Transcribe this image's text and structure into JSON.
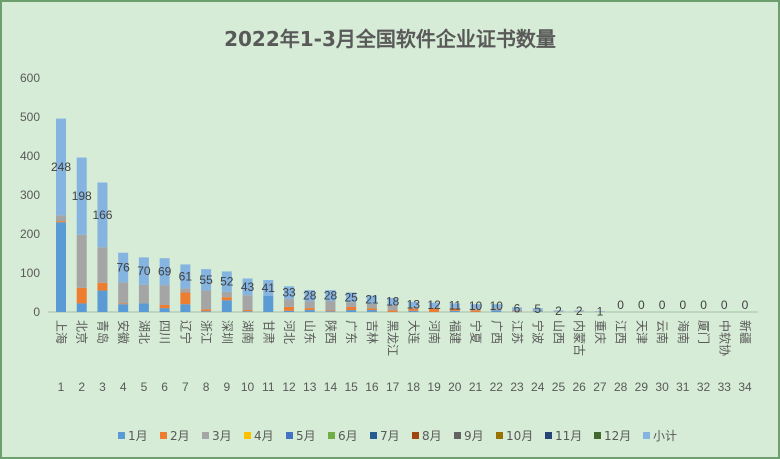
{
  "chart_data": {
    "type": "bar",
    "stacked": true,
    "title": "2022年1-3月全国软件企业证书数量",
    "xlabel": "",
    "ylabel": "",
    "categories": [
      "上海",
      "北京",
      "青岛",
      "安徽",
      "湖北",
      "四川",
      "辽宁",
      "浙江",
      "深圳",
      "湖南",
      "甘肃",
      "河北",
      "山东",
      "陕西",
      "广东",
      "吉林",
      "黑龙江",
      "大连",
      "河南",
      "福建",
      "宁夏",
      "广西",
      "江苏",
      "宁波",
      "山西",
      "内蒙古",
      "重庆",
      "江西",
      "天津",
      "云南",
      "海南",
      "厦门",
      "中软协",
      "新疆"
    ],
    "category_index": [
      "1",
      "2",
      "3",
      "4",
      "5",
      "6",
      "7",
      "8",
      "9",
      "10",
      "11",
      "12",
      "13",
      "14",
      "15",
      "16",
      "17",
      "18",
      "19",
      "20",
      "21",
      "22",
      "23",
      "24",
      "25",
      "26",
      "27",
      "28",
      "29",
      "30",
      "31",
      "32",
      "33",
      "34"
    ],
    "ylim": [
      0,
      600
    ],
    "yticks": [
      0,
      100,
      200,
      300,
      400,
      500,
      600
    ],
    "grid": false,
    "legend": "bottom",
    "data_labels_series": "小计",
    "series": [
      {
        "name": "1月",
        "color": "#5B9BD5",
        "values": [
          230,
          22,
          55,
          20,
          22,
          10,
          20,
          2,
          30,
          2,
          41,
          3,
          5,
          2,
          5,
          5,
          0,
          3,
          0,
          3,
          0,
          4,
          0,
          2,
          0,
          0,
          0,
          0,
          0,
          0,
          0,
          0,
          0,
          0
        ]
      },
      {
        "name": "2月",
        "color": "#ED7D31",
        "values": [
          3,
          40,
          20,
          2,
          0,
          8,
          30,
          5,
          8,
          3,
          0,
          10,
          5,
          2,
          8,
          4,
          4,
          5,
          8,
          4,
          4,
          0,
          0,
          0,
          0,
          0,
          0,
          0,
          0,
          0,
          0,
          0,
          0,
          0
        ]
      },
      {
        "name": "3月",
        "color": "#A5A5A5",
        "values": [
          15,
          136,
          91,
          54,
          48,
          51,
          11,
          48,
          14,
          38,
          0,
          20,
          18,
          24,
          12,
          12,
          14,
          5,
          4,
          4,
          6,
          6,
          6,
          3,
          2,
          2,
          1,
          0,
          0,
          0,
          0,
          0,
          0,
          0
        ]
      },
      {
        "name": "4月",
        "color": "#FFC000",
        "values": [
          0,
          0,
          0,
          0,
          0,
          0,
          0,
          0,
          0,
          0,
          0,
          0,
          0,
          0,
          0,
          0,
          0,
          0,
          0,
          0,
          0,
          0,
          0,
          0,
          0,
          0,
          0,
          0,
          0,
          0,
          0,
          0,
          0,
          0
        ]
      },
      {
        "name": "5月",
        "color": "#4472C4",
        "values": [
          0,
          0,
          0,
          0,
          0,
          0,
          0,
          0,
          0,
          0,
          0,
          0,
          0,
          0,
          0,
          0,
          0,
          0,
          0,
          0,
          0,
          0,
          0,
          0,
          0,
          0,
          0,
          0,
          0,
          0,
          0,
          0,
          0,
          0
        ]
      },
      {
        "name": "6月",
        "color": "#70AD47",
        "values": [
          0,
          0,
          0,
          0,
          0,
          0,
          0,
          0,
          0,
          0,
          0,
          0,
          0,
          0,
          0,
          0,
          0,
          0,
          0,
          0,
          0,
          0,
          0,
          0,
          0,
          0,
          0,
          0,
          0,
          0,
          0,
          0,
          0,
          0
        ]
      },
      {
        "name": "7月",
        "color": "#255E91",
        "values": [
          0,
          0,
          0,
          0,
          0,
          0,
          0,
          0,
          0,
          0,
          0,
          0,
          0,
          0,
          0,
          0,
          0,
          0,
          0,
          0,
          0,
          0,
          0,
          0,
          0,
          0,
          0,
          0,
          0,
          0,
          0,
          0,
          0,
          0
        ]
      },
      {
        "name": "8月",
        "color": "#9E480E",
        "values": [
          0,
          0,
          0,
          0,
          0,
          0,
          0,
          0,
          0,
          0,
          0,
          0,
          0,
          0,
          0,
          0,
          0,
          0,
          0,
          0,
          0,
          0,
          0,
          0,
          0,
          0,
          0,
          0,
          0,
          0,
          0,
          0,
          0,
          0
        ]
      },
      {
        "name": "9月",
        "color": "#636363",
        "values": [
          0,
          0,
          0,
          0,
          0,
          0,
          0,
          0,
          0,
          0,
          0,
          0,
          0,
          0,
          0,
          0,
          0,
          0,
          0,
          0,
          0,
          0,
          0,
          0,
          0,
          0,
          0,
          0,
          0,
          0,
          0,
          0,
          0,
          0
        ]
      },
      {
        "name": "10月",
        "color": "#997300",
        "values": [
          0,
          0,
          0,
          0,
          0,
          0,
          0,
          0,
          0,
          0,
          0,
          0,
          0,
          0,
          0,
          0,
          0,
          0,
          0,
          0,
          0,
          0,
          0,
          0,
          0,
          0,
          0,
          0,
          0,
          0,
          0,
          0,
          0,
          0
        ]
      },
      {
        "name": "11月",
        "color": "#264478",
        "values": [
          0,
          0,
          0,
          0,
          0,
          0,
          0,
          0,
          0,
          0,
          0,
          0,
          0,
          0,
          0,
          0,
          0,
          0,
          0,
          0,
          0,
          0,
          0,
          0,
          0,
          0,
          0,
          0,
          0,
          0,
          0,
          0,
          0,
          0
        ]
      },
      {
        "name": "12月",
        "color": "#43682B",
        "values": [
          0,
          0,
          0,
          0,
          0,
          0,
          0,
          0,
          0,
          0,
          0,
          0,
          0,
          0,
          0,
          0,
          0,
          0,
          0,
          0,
          0,
          0,
          0,
          0,
          0,
          0,
          0,
          0,
          0,
          0,
          0,
          0,
          0,
          0
        ]
      },
      {
        "name": "小计",
        "color": "#85B4E0",
        "values": [
          248,
          198,
          166,
          76,
          70,
          69,
          61,
          55,
          52,
          43,
          41,
          33,
          28,
          28,
          25,
          21,
          18,
          13,
          12,
          11,
          10,
          10,
          6,
          5,
          2,
          2,
          1,
          0,
          0,
          0,
          0,
          0,
          0,
          0
        ]
      }
    ]
  },
  "colors": {
    "background": "#d6ecd6",
    "frame": "#6d9e6d",
    "axis": "#a6bfa6",
    "text": "#595959"
  }
}
